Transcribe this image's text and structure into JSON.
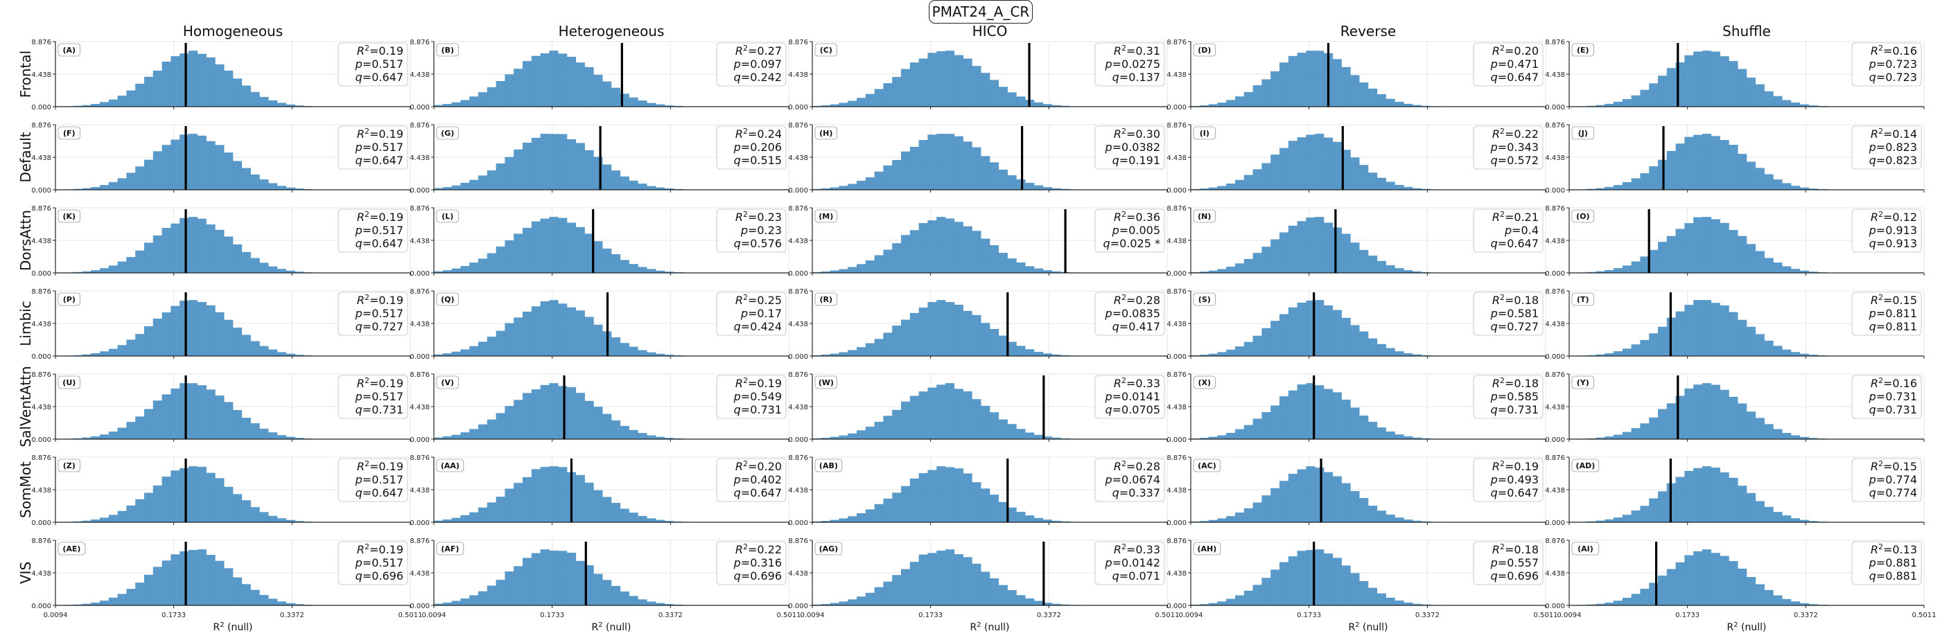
{
  "suptitle": "PMAT24_A_CR",
  "column_titles": [
    "Homogeneous",
    "Heterogeneous",
    "HICO",
    "Reverse",
    "Shuffle"
  ],
  "row_labels": [
    "Frontal",
    "Default",
    "DorsAttn",
    "Limbic",
    "SalVentAttn",
    "SomMot",
    "VIS"
  ],
  "colors": {
    "histogram": "#4a90c4",
    "observed_line": "#000000",
    "grid": "#e6e6e6"
  },
  "chart_data": {
    "type": "histogram_grid",
    "xlabel": "R² (null)",
    "ylabel": "",
    "xlim": [
      0.0094,
      0.5011
    ],
    "x_ticks": [
      "0.0094",
      "0.1733",
      "0.3372",
      "0.5011"
    ],
    "ylim": [
      0,
      8.876
    ],
    "y_ticks": [
      "0.000",
      "4.438",
      "8.876"
    ],
    "null_distributions": {
      "Homogeneous": {
        "mean": 0.19,
        "sd": 0.055,
        "skew": 0.3
      },
      "Heterogeneous": {
        "mean": 0.165,
        "sd": 0.06,
        "skew": 0.3
      },
      "HICO": {
        "mean": 0.18,
        "sd": 0.06,
        "skew": 0.35
      },
      "Reverse": {
        "mean": 0.17,
        "sd": 0.055,
        "skew": 0.3
      },
      "Shuffle": {
        "mean": 0.19,
        "sd": 0.055,
        "skew": 0.3
      }
    },
    "panels": [
      {
        "label": "(A)",
        "row": "Frontal",
        "col": "Homogeneous",
        "observed": 0.19,
        "r2": "0.19",
        "p": "0.517",
        "q": "0.647"
      },
      {
        "label": "(B)",
        "row": "Frontal",
        "col": "Heterogeneous",
        "observed": 0.27,
        "r2": "0.27",
        "p": "0.097",
        "q": "0.242"
      },
      {
        "label": "(C)",
        "row": "Frontal",
        "col": "HICO",
        "observed": 0.31,
        "r2": "0.31",
        "p": "0.0275",
        "q": "0.137"
      },
      {
        "label": "(D)",
        "row": "Frontal",
        "col": "Reverse",
        "observed": 0.2,
        "r2": "0.20",
        "p": "0.471",
        "q": "0.647"
      },
      {
        "label": "(E)",
        "row": "Frontal",
        "col": "Shuffle",
        "observed": 0.16,
        "r2": "0.16",
        "p": "0.723",
        "q": "0.723"
      },
      {
        "label": "(F)",
        "row": "Default",
        "col": "Homogeneous",
        "observed": 0.19,
        "r2": "0.19",
        "p": "0.517",
        "q": "0.647"
      },
      {
        "label": "(G)",
        "row": "Default",
        "col": "Heterogeneous",
        "observed": 0.24,
        "r2": "0.24",
        "p": "0.206",
        "q": "0.515"
      },
      {
        "label": "(H)",
        "row": "Default",
        "col": "HICO",
        "observed": 0.3,
        "r2": "0.30",
        "p": "0.0382",
        "q": "0.191"
      },
      {
        "label": "(I)",
        "row": "Default",
        "col": "Reverse",
        "observed": 0.22,
        "r2": "0.22",
        "p": "0.343",
        "q": "0.572"
      },
      {
        "label": "(J)",
        "row": "Default",
        "col": "Shuffle",
        "observed": 0.14,
        "r2": "0.14",
        "p": "0.823",
        "q": "0.823"
      },
      {
        "label": "(K)",
        "row": "DorsAttn",
        "col": "Homogeneous",
        "observed": 0.19,
        "r2": "0.19",
        "p": "0.517",
        "q": "0.647"
      },
      {
        "label": "(L)",
        "row": "DorsAttn",
        "col": "Heterogeneous",
        "observed": 0.23,
        "r2": "0.23",
        "p": "0.23",
        "q": "0.576"
      },
      {
        "label": "(M)",
        "row": "DorsAttn",
        "col": "HICO",
        "observed": 0.36,
        "r2": "0.36",
        "p": "0.005",
        "q": "0.025 *"
      },
      {
        "label": "(N)",
        "row": "DorsAttn",
        "col": "Reverse",
        "observed": 0.21,
        "r2": "0.21",
        "p": "0.4",
        "q": "0.647"
      },
      {
        "label": "(O)",
        "row": "DorsAttn",
        "col": "Shuffle",
        "observed": 0.12,
        "r2": "0.12",
        "p": "0.913",
        "q": "0.913"
      },
      {
        "label": "(P)",
        "row": "Limbic",
        "col": "Homogeneous",
        "observed": 0.19,
        "r2": "0.19",
        "p": "0.517",
        "q": "0.727"
      },
      {
        "label": "(Q)",
        "row": "Limbic",
        "col": "Heterogeneous",
        "observed": 0.25,
        "r2": "0.25",
        "p": "0.17",
        "q": "0.424"
      },
      {
        "label": "(R)",
        "row": "Limbic",
        "col": "HICO",
        "observed": 0.28,
        "r2": "0.28",
        "p": "0.0835",
        "q": "0.417"
      },
      {
        "label": "(S)",
        "row": "Limbic",
        "col": "Reverse",
        "observed": 0.18,
        "r2": "0.18",
        "p": "0.581",
        "q": "0.727"
      },
      {
        "label": "(T)",
        "row": "Limbic",
        "col": "Shuffle",
        "observed": 0.15,
        "r2": "0.15",
        "p": "0.811",
        "q": "0.811"
      },
      {
        "label": "(U)",
        "row": "SalVentAttn",
        "col": "Homogeneous",
        "observed": 0.19,
        "r2": "0.19",
        "p": "0.517",
        "q": "0.731"
      },
      {
        "label": "(V)",
        "row": "SalVentAttn",
        "col": "Heterogeneous",
        "observed": 0.19,
        "r2": "0.19",
        "p": "0.549",
        "q": "0.731"
      },
      {
        "label": "(W)",
        "row": "SalVentAttn",
        "col": "HICO",
        "observed": 0.33,
        "r2": "0.33",
        "p": "0.0141",
        "q": "0.0705"
      },
      {
        "label": "(X)",
        "row": "SalVentAttn",
        "col": "Reverse",
        "observed": 0.18,
        "r2": "0.18",
        "p": "0.585",
        "q": "0.731"
      },
      {
        "label": "(Y)",
        "row": "SalVentAttn",
        "col": "Shuffle",
        "observed": 0.16,
        "r2": "0.16",
        "p": "0.731",
        "q": "0.731"
      },
      {
        "label": "(Z)",
        "row": "SomMot",
        "col": "Homogeneous",
        "observed": 0.19,
        "r2": "0.19",
        "p": "0.517",
        "q": "0.647"
      },
      {
        "label": "(AA)",
        "row": "SomMot",
        "col": "Heterogeneous",
        "observed": 0.2,
        "r2": "0.20",
        "p": "0.402",
        "q": "0.647"
      },
      {
        "label": "(AB)",
        "row": "SomMot",
        "col": "HICO",
        "observed": 0.28,
        "r2": "0.28",
        "p": "0.0674",
        "q": "0.337"
      },
      {
        "label": "(AC)",
        "row": "SomMot",
        "col": "Reverse",
        "observed": 0.19,
        "r2": "0.19",
        "p": "0.493",
        "q": "0.647"
      },
      {
        "label": "(AD)",
        "row": "SomMot",
        "col": "Shuffle",
        "observed": 0.15,
        "r2": "0.15",
        "p": "0.774",
        "q": "0.774"
      },
      {
        "label": "(AE)",
        "row": "VIS",
        "col": "Homogeneous",
        "observed": 0.19,
        "r2": "0.19",
        "p": "0.517",
        "q": "0.696"
      },
      {
        "label": "(AF)",
        "row": "VIS",
        "col": "Heterogeneous",
        "observed": 0.22,
        "r2": "0.22",
        "p": "0.316",
        "q": "0.696"
      },
      {
        "label": "(AG)",
        "row": "VIS",
        "col": "HICO",
        "observed": 0.33,
        "r2": "0.33",
        "p": "0.0142",
        "q": "0.071"
      },
      {
        "label": "(AH)",
        "row": "VIS",
        "col": "Reverse",
        "observed": 0.18,
        "r2": "0.18",
        "p": "0.557",
        "q": "0.696"
      },
      {
        "label": "(AI)",
        "row": "VIS",
        "col": "Shuffle",
        "observed": 0.13,
        "r2": "0.13",
        "p": "0.881",
        "q": "0.881"
      }
    ]
  }
}
